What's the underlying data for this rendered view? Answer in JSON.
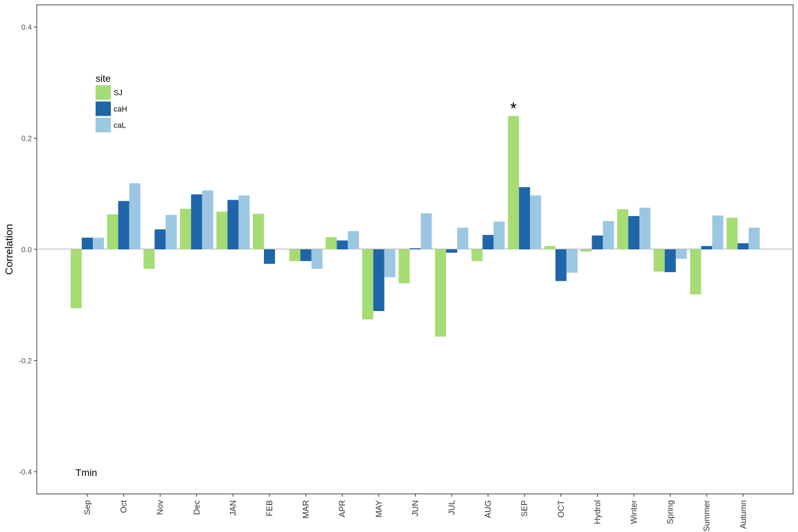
{
  "chart_data": {
    "type": "bar",
    "ylabel": "Correlation",
    "xlabel": "",
    "ylim": [
      -0.44,
      0.44
    ],
    "y_ticks": [
      -0.4,
      -0.2,
      0.0,
      0.2,
      0.4
    ],
    "y_tick_labels": [
      "-0.4",
      "-0.2",
      "0.0",
      "0.2",
      "0.4"
    ],
    "grid": false,
    "categories": [
      "Sep",
      "Oct",
      "Nov",
      "Dec",
      "JAN",
      "FEB",
      "MAR",
      "APR",
      "MAY",
      "JUN",
      "JUL",
      "AUG",
      "SEP",
      "OCT",
      "Hydrol",
      "Winter",
      "Spring",
      "Summer",
      "Autumn"
    ],
    "series": [
      {
        "name": "SJ",
        "color": "#a6dc74",
        "values": [
          -0.106,
          0.063,
          -0.035,
          0.073,
          0.068,
          0.064,
          -0.021,
          0.022,
          -0.126,
          -0.061,
          -0.157,
          -0.021,
          0.24,
          0.006,
          -0.004,
          0.072,
          -0.04,
          -0.081,
          0.057
        ]
      },
      {
        "name": "caH",
        "color": "#1f65a9",
        "values": [
          0.021,
          0.087,
          0.036,
          0.099,
          0.089,
          -0.026,
          -0.021,
          0.016,
          -0.111,
          0.002,
          -0.006,
          0.026,
          0.112,
          -0.057,
          0.025,
          0.06,
          -0.041,
          0.006,
          0.011
        ]
      },
      {
        "name": "caL",
        "color": "#9bc7e3",
        "values": [
          0.021,
          0.119,
          0.062,
          0.106,
          0.097,
          null,
          -0.035,
          0.033,
          -0.05,
          0.065,
          0.039,
          0.05,
          0.097,
          -0.042,
          0.051,
          0.075,
          -0.017,
          0.061,
          0.039
        ]
      }
    ],
    "legend": {
      "title": "site",
      "position": "top-left"
    },
    "annotations": [
      {
        "text": "Tmin",
        "x": "Sep",
        "y": -0.4
      },
      {
        "text": "*",
        "x": "SEP",
        "series": "SJ",
        "y": 0.265
      }
    ]
  }
}
